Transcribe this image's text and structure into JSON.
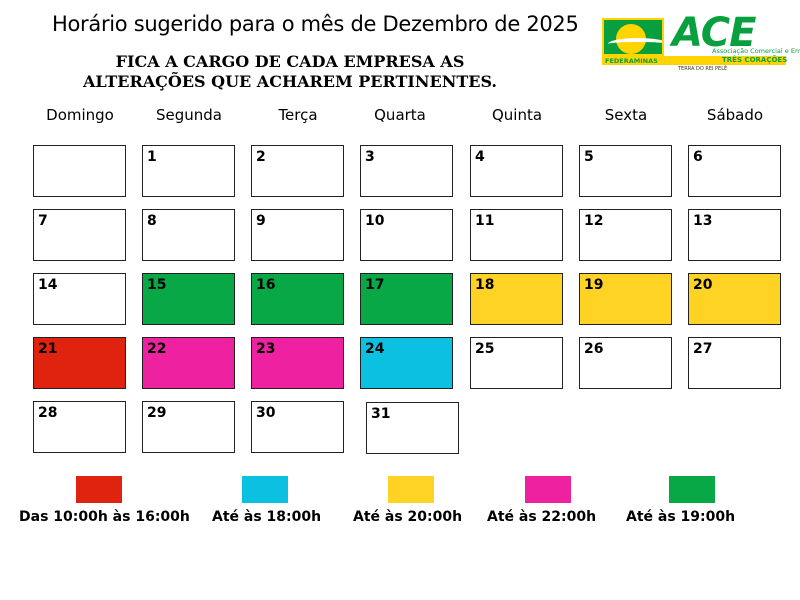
{
  "title": "Horário sugerido para o mês de Dezembro de 2025",
  "notice": {
    "line1": "FICA A CARGO DE CADA EMPRESA AS",
    "line2": "ALTERAÇÕES QUE ACHAREM PERTINENTES."
  },
  "logo": {
    "name": "ACE",
    "subtitle": "Associação Comercial e Empresarial",
    "federation": "FEDERAMINAS",
    "city": "TRÊS CORAÇÕES",
    "tagline": "TERRA DO REI PELÉ"
  },
  "weekdays": [
    "Domingo",
    "Segunda",
    "Terça",
    "Quarta",
    "Quinta",
    "Sexta",
    "Sábado"
  ],
  "colors": {
    "red": "#e0230f",
    "cyan": "#0cc0e2",
    "yellow": "#ffd324",
    "magenta": "#ee22a0",
    "green": "#08a847"
  },
  "calendar": {
    "rows": [
      [
        {
          "day": ""
        },
        {
          "day": "1"
        },
        {
          "day": "2"
        },
        {
          "day": "3"
        },
        {
          "day": "4"
        },
        {
          "day": "5"
        },
        {
          "day": "6"
        }
      ],
      [
        {
          "day": "7"
        },
        {
          "day": "8"
        },
        {
          "day": "9"
        },
        {
          "day": "10"
        },
        {
          "day": "11"
        },
        {
          "day": "12"
        },
        {
          "day": "13"
        }
      ],
      [
        {
          "day": "14"
        },
        {
          "day": "15",
          "color": "green"
        },
        {
          "day": "16",
          "color": "green"
        },
        {
          "day": "17",
          "color": "green"
        },
        {
          "day": "18",
          "color": "yellow"
        },
        {
          "day": "19",
          "color": "yellow"
        },
        {
          "day": "20",
          "color": "yellow"
        }
      ],
      [
        {
          "day": "21",
          "color": "red"
        },
        {
          "day": "22",
          "color": "magenta"
        },
        {
          "day": "23",
          "color": "magenta"
        },
        {
          "day": "24",
          "color": "cyan"
        },
        {
          "day": "25"
        },
        {
          "day": "26"
        },
        {
          "day": "27"
        }
      ],
      [
        {
          "day": "28"
        },
        {
          "day": "29"
        },
        {
          "day": "30"
        },
        {
          "day": "31"
        }
      ]
    ]
  },
  "legend": [
    {
      "color": "red",
      "label": "Das 10:00h às 16:00h"
    },
    {
      "color": "cyan",
      "label": "Até às 18:00h"
    },
    {
      "color": "yellow",
      "label": "Até às 20:00h"
    },
    {
      "color": "magenta",
      "label": "Até às 22:00h"
    },
    {
      "color": "green",
      "label": "Até às 19:00h"
    }
  ]
}
